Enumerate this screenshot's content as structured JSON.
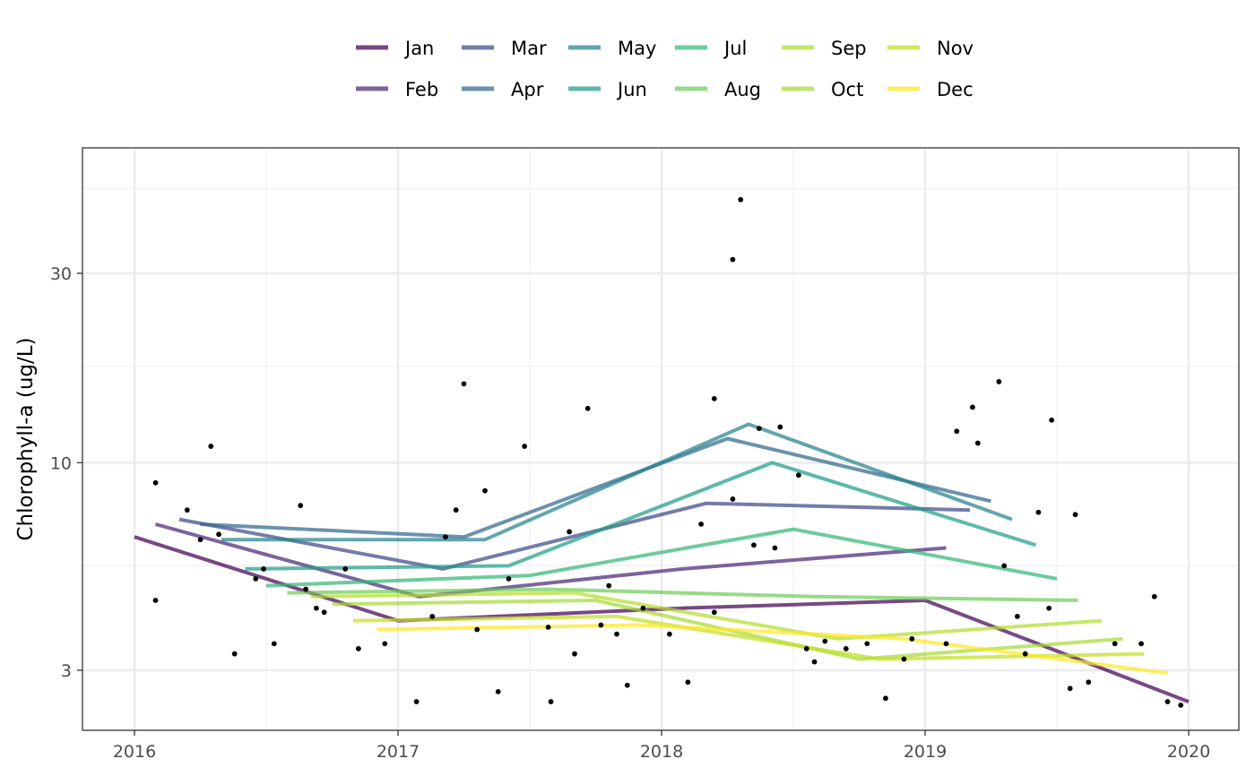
{
  "chart_data": {
    "type": "line",
    "title": "",
    "xlabel": "",
    "ylabel": "Chlorophyll-a (ug/L)",
    "y_scale": "log",
    "xlim": [
      2015.8,
      2020.2
    ],
    "ylim": [
      2.2,
      55
    ],
    "x_ticks": [
      2016,
      2017,
      2018,
      2019,
      2020
    ],
    "x_tick_labels": [
      "2016",
      "2017",
      "2018",
      "2019",
      "2020"
    ],
    "y_ticks": [
      3,
      10,
      30
    ],
    "y_tick_labels": [
      "3",
      "10",
      "30"
    ],
    "y_minor_ticks": [
      5.5,
      17.5,
      49
    ],
    "grid": true,
    "legend_position": "top",
    "series": [
      {
        "name": "Jan",
        "color": "#440154",
        "x": [
          2016.0,
          2017.0,
          2018.08,
          2019.0,
          2020.0
        ],
        "y": [
          6.5,
          4.0,
          4.3,
          4.5,
          2.5
        ]
      },
      {
        "name": "Feb",
        "color": "#482878",
        "x": [
          2016.08,
          2017.08,
          2018.08,
          2019.08
        ],
        "y": [
          7.0,
          4.6,
          5.4,
          6.1
        ]
      },
      {
        "name": "Mar",
        "color": "#3E4A89",
        "x": [
          2016.17,
          2017.17,
          2018.17,
          2019.17
        ],
        "y": [
          7.2,
          5.4,
          7.9,
          7.6
        ]
      },
      {
        "name": "Apr",
        "color": "#31688E",
        "x": [
          2016.25,
          2017.25,
          2018.25,
          2019.25
        ],
        "y": [
          7.0,
          6.5,
          11.5,
          8.0
        ]
      },
      {
        "name": "May",
        "color": "#26828E",
        "x": [
          2016.33,
          2017.33,
          2018.33,
          2019.33
        ],
        "y": [
          6.4,
          6.4,
          12.5,
          7.2
        ]
      },
      {
        "name": "Jun",
        "color": "#1F9E89",
        "x": [
          2016.42,
          2017.42,
          2018.42,
          2019.42
        ],
        "y": [
          5.4,
          5.5,
          10.0,
          6.2
        ]
      },
      {
        "name": "Jul",
        "color": "#35B779",
        "x": [
          2016.5,
          2017.5,
          2018.5,
          2019.5
        ],
        "y": [
          4.9,
          5.2,
          6.8,
          5.1
        ]
      },
      {
        "name": "Aug",
        "color": "#6DCD59",
        "x": [
          2016.58,
          2017.58,
          2018.58,
          2019.58
        ],
        "y": [
          4.7,
          4.8,
          4.6,
          4.5
        ]
      },
      {
        "name": "Sep",
        "color": "#B4DE2C",
        "x": [
          2016.67,
          2017.67,
          2018.67,
          2019.67
        ],
        "y": [
          4.6,
          4.7,
          3.6,
          4.0
        ]
      },
      {
        "name": "Oct",
        "color": "#A5DB36",
        "x": [
          2016.75,
          2017.75,
          2018.75,
          2019.75
        ],
        "y": [
          4.4,
          4.5,
          3.2,
          3.6
        ]
      },
      {
        "name": "Nov",
        "color": "#C2DF23",
        "x": [
          2016.83,
          2017.83,
          2018.83,
          2019.83
        ],
        "y": [
          4.0,
          4.1,
          3.2,
          3.3
        ]
      },
      {
        "name": "Dec",
        "color": "#FDE725",
        "x": [
          2016.92,
          2017.92,
          2018.92,
          2019.92
        ],
        "y": [
          3.8,
          3.9,
          3.6,
          2.95
        ]
      }
    ],
    "points": [
      {
        "x": 2016.08,
        "y": 4.5
      },
      {
        "x": 2016.08,
        "y": 8.9
      },
      {
        "x": 2016.2,
        "y": 7.6
      },
      {
        "x": 2016.25,
        "y": 6.4
      },
      {
        "x": 2016.29,
        "y": 11.0
      },
      {
        "x": 2016.32,
        "y": 6.6
      },
      {
        "x": 2016.38,
        "y": 3.3
      },
      {
        "x": 2016.46,
        "y": 5.1
      },
      {
        "x": 2016.49,
        "y": 5.4
      },
      {
        "x": 2016.53,
        "y": 3.5
      },
      {
        "x": 2016.63,
        "y": 7.8
      },
      {
        "x": 2016.65,
        "y": 4.8
      },
      {
        "x": 2016.69,
        "y": 4.3
      },
      {
        "x": 2016.72,
        "y": 4.2
      },
      {
        "x": 2016.8,
        "y": 5.4
      },
      {
        "x": 2016.85,
        "y": 3.4
      },
      {
        "x": 2016.95,
        "y": 3.5
      },
      {
        "x": 2017.07,
        "y": 2.5
      },
      {
        "x": 2017.13,
        "y": 4.1
      },
      {
        "x": 2017.18,
        "y": 6.5
      },
      {
        "x": 2017.22,
        "y": 7.6
      },
      {
        "x": 2017.25,
        "y": 15.8
      },
      {
        "x": 2017.3,
        "y": 3.8
      },
      {
        "x": 2017.33,
        "y": 8.5
      },
      {
        "x": 2017.38,
        "y": 2.65
      },
      {
        "x": 2017.42,
        "y": 5.1
      },
      {
        "x": 2017.48,
        "y": 11.0
      },
      {
        "x": 2017.58,
        "y": 2.5
      },
      {
        "x": 2017.57,
        "y": 3.85
      },
      {
        "x": 2017.65,
        "y": 6.7
      },
      {
        "x": 2017.67,
        "y": 3.3
      },
      {
        "x": 2017.72,
        "y": 13.7
      },
      {
        "x": 2017.77,
        "y": 3.9
      },
      {
        "x": 2017.8,
        "y": 4.9
      },
      {
        "x": 2017.83,
        "y": 3.7
      },
      {
        "x": 2017.87,
        "y": 2.75
      },
      {
        "x": 2017.93,
        "y": 4.3
      },
      {
        "x": 2018.03,
        "y": 3.7
      },
      {
        "x": 2018.1,
        "y": 2.8
      },
      {
        "x": 2018.15,
        "y": 7.0
      },
      {
        "x": 2018.2,
        "y": 14.5
      },
      {
        "x": 2018.27,
        "y": 8.1
      },
      {
        "x": 2018.2,
        "y": 4.2
      },
      {
        "x": 2018.27,
        "y": 32.5
      },
      {
        "x": 2018.3,
        "y": 46.0
      },
      {
        "x": 2018.35,
        "y": 6.2
      },
      {
        "x": 2018.37,
        "y": 12.2
      },
      {
        "x": 2018.43,
        "y": 6.1
      },
      {
        "x": 2018.45,
        "y": 12.3
      },
      {
        "x": 2018.52,
        "y": 9.3
      },
      {
        "x": 2018.55,
        "y": 3.4
      },
      {
        "x": 2018.58,
        "y": 3.15
      },
      {
        "x": 2018.62,
        "y": 3.55
      },
      {
        "x": 2018.7,
        "y": 3.4
      },
      {
        "x": 2018.78,
        "y": 3.5
      },
      {
        "x": 2018.85,
        "y": 2.55
      },
      {
        "x": 2018.92,
        "y": 3.2
      },
      {
        "x": 2018.95,
        "y": 3.6
      },
      {
        "x": 2019.08,
        "y": 3.5
      },
      {
        "x": 2019.12,
        "y": 12.0
      },
      {
        "x": 2019.18,
        "y": 13.8
      },
      {
        "x": 2019.2,
        "y": 11.2
      },
      {
        "x": 2019.28,
        "y": 16.0
      },
      {
        "x": 2019.3,
        "y": 5.5
      },
      {
        "x": 2019.35,
        "y": 4.1
      },
      {
        "x": 2019.38,
        "y": 3.3
      },
      {
        "x": 2019.43,
        "y": 7.5
      },
      {
        "x": 2019.47,
        "y": 4.3
      },
      {
        "x": 2019.48,
        "y": 12.8
      },
      {
        "x": 2019.55,
        "y": 2.7
      },
      {
        "x": 2019.57,
        "y": 7.4
      },
      {
        "x": 2019.62,
        "y": 2.8
      },
      {
        "x": 2019.72,
        "y": 3.5
      },
      {
        "x": 2019.82,
        "y": 3.5
      },
      {
        "x": 2019.87,
        "y": 4.6
      },
      {
        "x": 2019.92,
        "y": 2.5
      },
      {
        "x": 2019.97,
        "y": 2.45
      }
    ],
    "point_color": "#000000"
  }
}
